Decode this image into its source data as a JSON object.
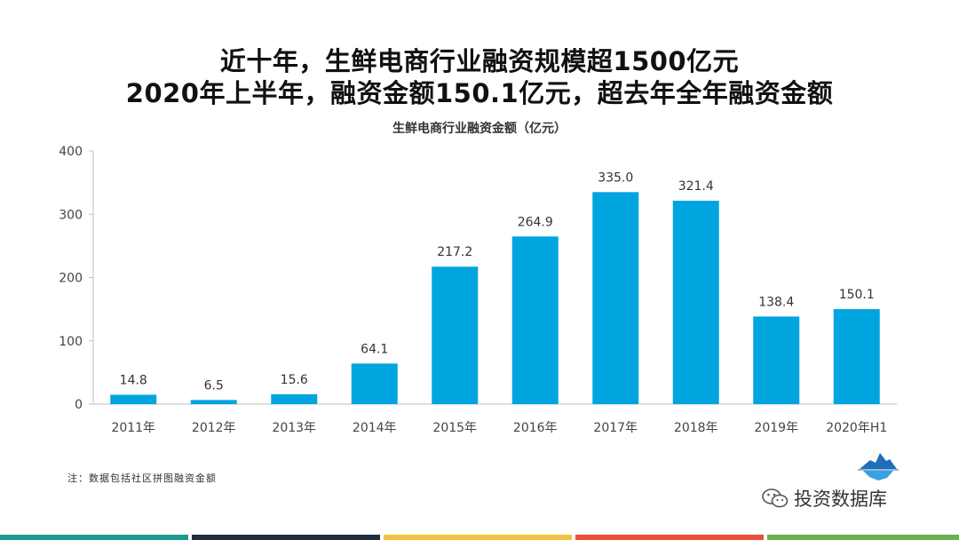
{
  "slide": {
    "title_line1": "近十年，生鲜电商行业融资规模超1500亿元",
    "title_line2": "2020年上半年，融资金额150.1亿元，超去年全年融资金额",
    "note": "注：数据包括社区拼图融资金额",
    "watermark": "投资数据库",
    "logo_icon": "iceberg-logo-icon",
    "watermark_icon": "wechat-icon"
  },
  "chart_data": {
    "type": "bar",
    "title": "生鲜电商行业融资金额（亿元）",
    "categories": [
      "2011年",
      "2012年",
      "2013年",
      "2014年",
      "2015年",
      "2016年",
      "2017年",
      "2018年",
      "2019年",
      "2020年H1"
    ],
    "values": [
      14.8,
      6.5,
      15.6,
      64.1,
      217.2,
      264.9,
      335.0,
      321.4,
      138.4,
      150.1
    ],
    "value_labels": [
      "14.8",
      "6.5",
      "15.6",
      "64.1",
      "217.2",
      "264.9",
      "335.0",
      "321.4",
      "138.4",
      "150.1"
    ],
    "ylim": [
      0,
      400
    ],
    "yticks": [
      "0",
      "100",
      "200",
      "300",
      "400"
    ],
    "grid": false,
    "legend": "none",
    "bar_color": "#00a5e0"
  },
  "footer_colors": [
    "#1a9b8e",
    "#1f2d3d",
    "#f3c244",
    "#e8503a",
    "#6ab04c"
  ]
}
